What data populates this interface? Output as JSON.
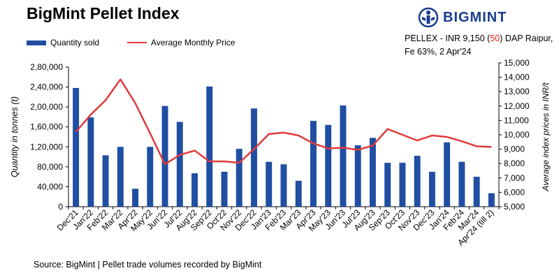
{
  "title": "BigMint Pellet Index",
  "brand": {
    "name": "BIGMINT",
    "logo_icon": "bigmint-logo-icon",
    "color": "#1a3c8c"
  },
  "pellex": {
    "prefix": "PELLEX - INR 9,150 (",
    "change": "50",
    "suffix": ") DAP Raipur,",
    "line2": "Fe 63%, 2 Apr'24",
    "change_color": "#e02020"
  },
  "source": "Source: BigMint | Pellet trade volumes recorded by BigMint",
  "chart_data": {
    "type": "bar",
    "categories": [
      "Dec'21",
      "Jan'22",
      "Feb'22",
      "Mar'22",
      "Apr'22",
      "May'22",
      "Jun'22",
      "Jul'22",
      "Aug'22",
      "Sep'22",
      "Oct'22",
      "Nov'22",
      "Dec'22",
      "Jan'23",
      "Feb'23",
      "Mar'23",
      "Apr'23",
      "May'23",
      "Jun'23",
      "Jul'23",
      "Aug'23",
      "Sep'23",
      "Oct'23",
      "Nov'23",
      "Dec'23",
      "Jan'24",
      "Feb'24",
      "Mar'24",
      "Apr'24 (till 2)"
    ],
    "series": [
      {
        "name": "Quantity sold",
        "type": "bar",
        "axis": "left",
        "color": "#1f4ea3",
        "values": [
          238000,
          179000,
          103000,
          120000,
          36000,
          120000,
          202000,
          170000,
          67000,
          241000,
          70000,
          116000,
          197000,
          90000,
          85000,
          52000,
          172000,
          164000,
          203000,
          123000,
          138000,
          88000,
          88000,
          102000,
          70000,
          129000,
          90000,
          60000,
          27000
        ]
      },
      {
        "name": "Average Monthly Price",
        "type": "line",
        "axis": "right",
        "color": "#e03a3a",
        "values": [
          10200,
          11400,
          12400,
          13850,
          12200,
          10100,
          7950,
          8600,
          8900,
          8150,
          8150,
          8050,
          9000,
          10050,
          10150,
          9950,
          9400,
          9050,
          9100,
          8950,
          9250,
          10400,
          10000,
          9600,
          9950,
          9850,
          9550,
          9200,
          9150
        ]
      }
    ],
    "y_left": {
      "label": "Quantity in tonnes (t)",
      "min": 0,
      "max": 280000,
      "ticks": [
        0,
        40000,
        80000,
        120000,
        160000,
        200000,
        240000,
        280000
      ],
      "tick_labels": [
        "0",
        "40,000",
        "80,000",
        "1,20,000",
        "1,60,000",
        "2,00,000",
        "2,40,000",
        "2,80,000"
      ]
    },
    "y_right": {
      "label": "Average index prices in INR/t",
      "min": 5000,
      "max": 15000,
      "ticks": [
        5000,
        6000,
        7000,
        8000,
        9000,
        10000,
        11000,
        12000,
        13000,
        14000,
        15000
      ],
      "tick_labels": [
        "5,000",
        "6,000",
        "7,000",
        "8,000",
        "9,000",
        "10,000",
        "11,000",
        "12,000",
        "13,000",
        "14,000",
        "15,000"
      ]
    },
    "grid": false,
    "legend": "top-left"
  }
}
